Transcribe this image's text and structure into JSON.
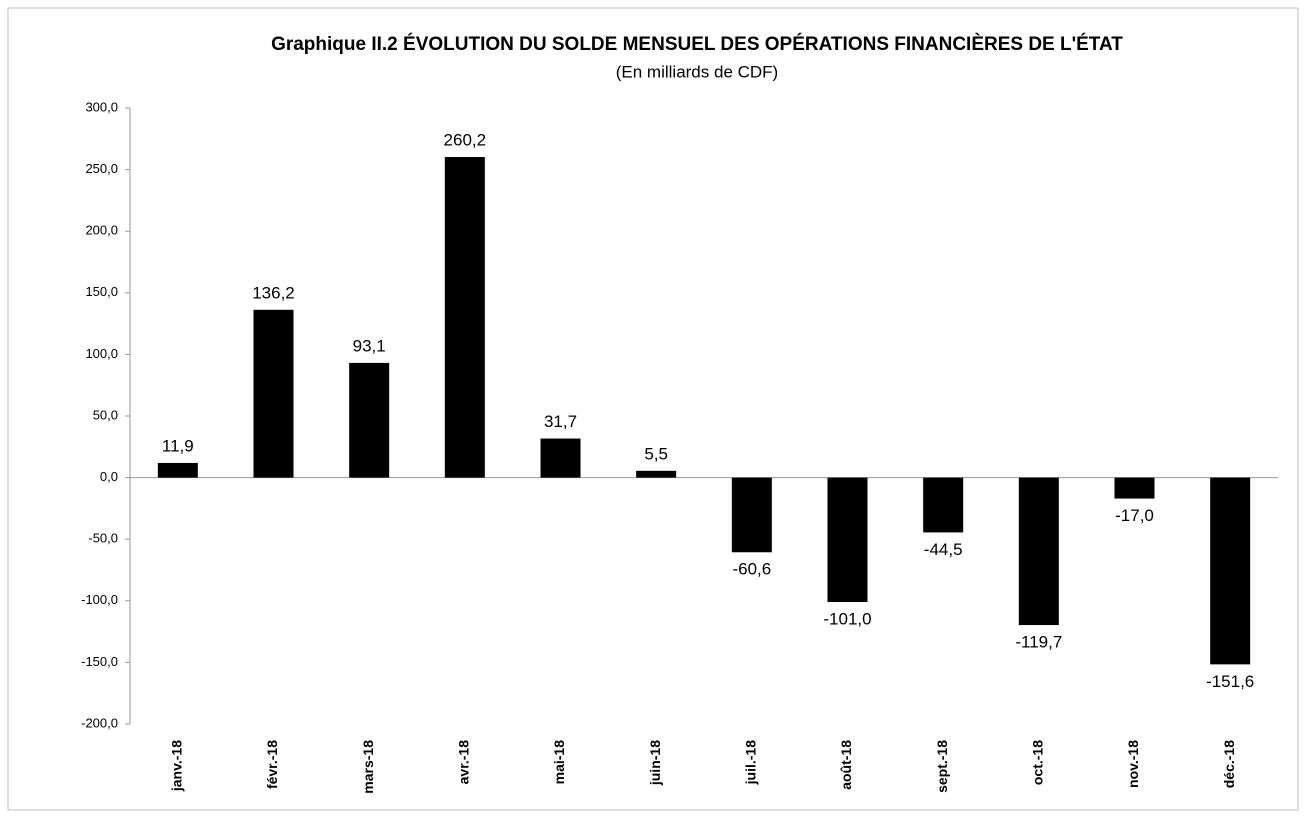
{
  "chart_data": {
    "type": "bar",
    "title": "Graphique II.2  ÉVOLUTION DU SOLDE MENSUEL DES OPÉRATIONS FINANCIÈRES DE L'ÉTAT",
    "subtitle": "(En milliards de  CDF)",
    "categories": [
      "janv.-18",
      "févr.-18",
      "mars-18",
      "avr.-18",
      "mai-18",
      "juin-18",
      "juil.-18",
      "août-18",
      "sept.-18",
      "oct.-18",
      "nov.-18",
      "déc.-18"
    ],
    "values": [
      11.9,
      136.2,
      93.1,
      260.2,
      31.7,
      5.5,
      -60.6,
      -101.0,
      -44.5,
      -119.7,
      -17.0,
      -151.6
    ],
    "value_labels": [
      "11,9",
      "136,2",
      "93,1",
      "260,2",
      "31,7",
      "5,5",
      "-60,6",
      "-101,0",
      "-44,5",
      "-119,7",
      "-17,0",
      "-151,6"
    ],
    "color": "#000000",
    "ylim": [
      -200,
      300
    ],
    "yticks": [
      {
        "value": -200,
        "label": "-200,0"
      },
      {
        "value": -150,
        "label": "-150,0"
      },
      {
        "value": -100,
        "label": "-100,0"
      },
      {
        "value": -50,
        "label": "-50,0"
      },
      {
        "value": 0,
        "label": "0,0"
      },
      {
        "value": 50,
        "label": "50,0"
      },
      {
        "value": 100,
        "label": "100,0"
      },
      {
        "value": 150,
        "label": "150,0"
      },
      {
        "value": 200,
        "label": "200,0"
      },
      {
        "value": 250,
        "label": "250,0"
      },
      {
        "value": 300,
        "label": "300,0"
      }
    ],
    "grid": false
  }
}
